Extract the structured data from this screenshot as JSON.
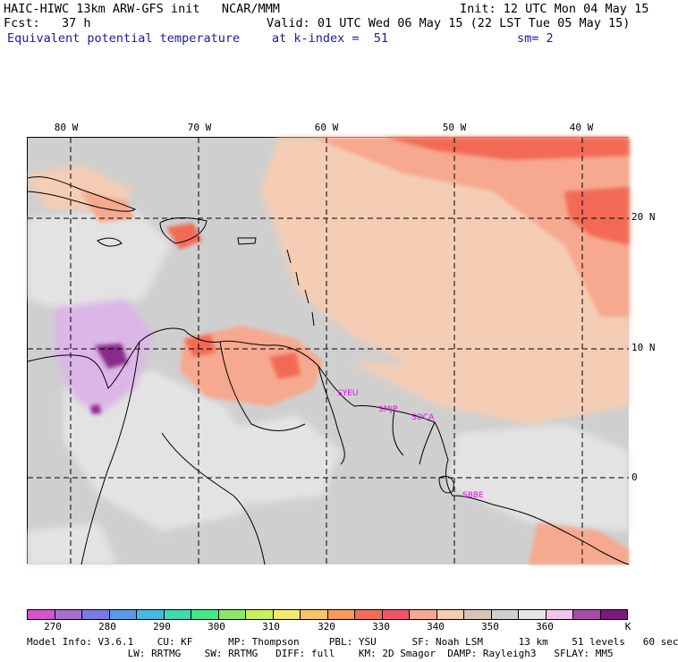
{
  "header": {
    "line1_left": "HAIC-HIWC 13km ARW-GFS init   NCAR/MMM",
    "line1_right": "Init: 12 UTC Mon 04 May 15",
    "line2_left": "Fcst:   37 h",
    "line2_right": "Valid: 01 UTC Wed 06 May 15 (22 LST Tue 05 May 15)",
    "line3_left": "Equivalent potential temperature",
    "line3_mid": "at k-index =  51",
    "line3_right": "sm= 2"
  },
  "map": {
    "lon_labels": [
      "80 W",
      "70 W",
      "60 W",
      "50 W",
      "40 W"
    ],
    "lat_labels": [
      "20 N",
      "10 N",
      "0"
    ],
    "stations": [
      "SYEU",
      "SMJP",
      "SOCA",
      "SBBE"
    ],
    "colors": {
      "background_gray": "#cfcfcf",
      "light_gray": "#e6e6e6",
      "peach": "#f5cdb4",
      "salmon": "#f6a98f",
      "red": "#f26b57",
      "lavender": "#dcb6e6",
      "purple": "#8a2a8a",
      "coast": "#000000",
      "grid": "#000000",
      "station": "#e010e0"
    }
  },
  "colorbar": {
    "colors": [
      "#d455c8",
      "#a46fcf",
      "#7b79e6",
      "#5a9ae8",
      "#47b7e6",
      "#3fd9b2",
      "#45e68a",
      "#8ee66a",
      "#c9ee62",
      "#f2e874",
      "#f7c56a",
      "#f79a5a",
      "#f26b57",
      "#f2556b",
      "#f6a98f",
      "#f5cdb4",
      "#d9c4b8",
      "#cfcfcf",
      "#e6e6e6",
      "#f0c6ec",
      "#a84aa8",
      "#7a1a7a"
    ],
    "ticks": [
      "270",
      "280",
      "290",
      "300",
      "310",
      "320",
      "330",
      "340",
      "350",
      "360"
    ],
    "unit": "K"
  },
  "footer": {
    "line1": "Model Info: V3.6.1    CU: KF      MP: Thompson     PBL: YSU      SF: Noah LSM      13 km    51 levels   60 sec",
    "line2": "                 LW: RRTMG    SW: RRTMG   DIFF: full    KM: 2D Smagor  DAMP: Rayleigh3   SFLAY: MM5"
  }
}
